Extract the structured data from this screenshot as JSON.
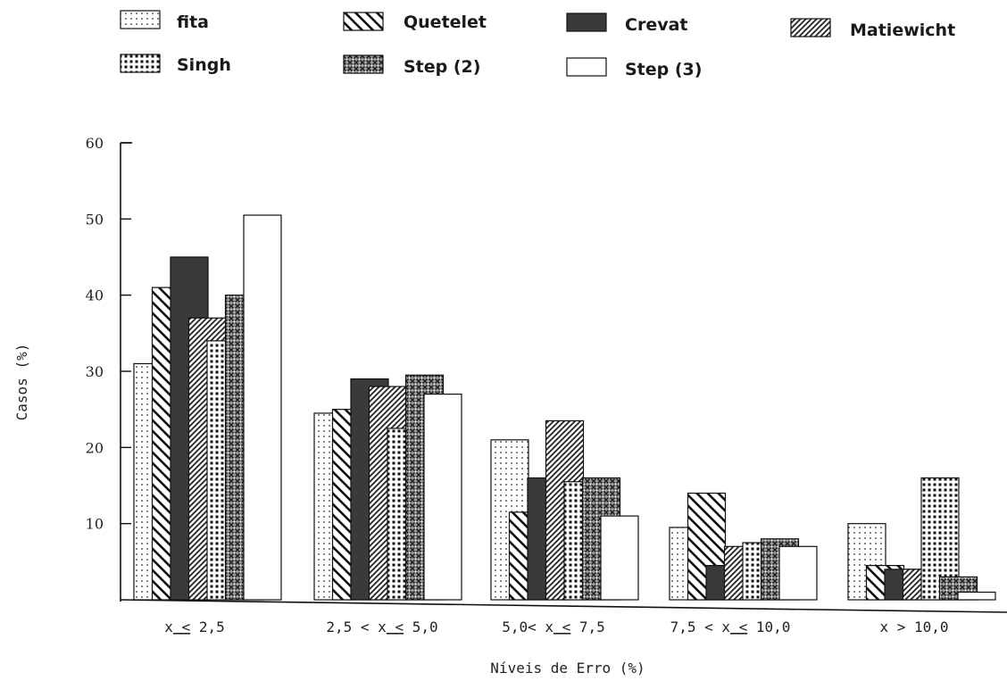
{
  "chart_data": {
    "type": "bar",
    "title": "",
    "xlabel": "Níveis de Erro (%)",
    "ylabel": "Casos (%)",
    "ylim": [
      0,
      60
    ],
    "yticks": [
      10,
      20,
      30,
      40,
      50,
      60
    ],
    "grid": false,
    "legend_position": "top",
    "categories": [
      [
        "x",
        "<",
        "2,5"
      ],
      [
        "2,5 < x",
        "<",
        "5,0"
      ],
      [
        "5,0< x",
        "<",
        "7,5"
      ],
      [
        "7,5 < ",
        "x",
        "<",
        "10,0"
      ],
      [
        "x > 10,0"
      ]
    ],
    "series": [
      {
        "name": "fita",
        "pattern": "dots",
        "values": [
          31,
          24.5,
          21,
          9.5,
          10
        ]
      },
      {
        "name": "Quetelet",
        "pattern": "back-diag",
        "values": [
          41,
          25,
          11.5,
          14,
          4.5
        ]
      },
      {
        "name": "Crevat",
        "pattern": "solid",
        "values": [
          45,
          29,
          16,
          4.5,
          4
        ]
      },
      {
        "name": "Matiewicht",
        "pattern": "fwd-diag",
        "values": [
          37,
          28,
          23.5,
          7,
          4
        ]
      },
      {
        "name": "Singh",
        "pattern": "dotted-grid",
        "values": [
          34,
          22.5,
          15.5,
          7.5,
          16
        ]
      },
      {
        "name": "Step (2)",
        "pattern": "crosshatch",
        "values": [
          40,
          29.5,
          16,
          8,
          3
        ]
      },
      {
        "name": "Step (3)",
        "pattern": "empty",
        "values": [
          50.5,
          27,
          11,
          7,
          1
        ]
      }
    ]
  }
}
